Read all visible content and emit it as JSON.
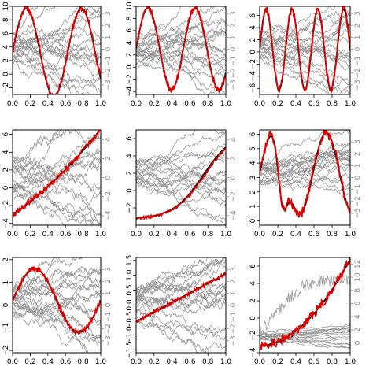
{
  "chart_data": [
    {
      "type": "line",
      "panel": "1",
      "xlim": [
        0,
        1
      ],
      "left_ticks": [
        -2,
        0,
        2,
        4,
        6,
        8,
        10
      ],
      "left_labels": [
        "−2",
        "0",
        "2",
        "4",
        "6",
        "8",
        "10"
      ],
      "ylim": [
        -3,
        10
      ],
      "right_ticks": [
        -3,
        -2,
        -1,
        0,
        1,
        2,
        3
      ],
      "right_labels": [
        "−3",
        "−2",
        "−1",
        "0",
        "1",
        "2",
        "3"
      ],
      "rlim": [
        -3.8,
        3.6
      ],
      "x_ticks": [
        0,
        0.2,
        0.4,
        0.6,
        0.8,
        1
      ],
      "x_labels": [
        "0.0",
        "0.2",
        "0.4",
        "0.6",
        "0.8",
        "1.0"
      ],
      "truth": {
        "fn": "sin",
        "a": 6.5,
        "f": 1.6,
        "c": 3.2
      },
      "red": {
        "noise": 0.45
      },
      "gray": {
        "n": 20,
        "center": 0.0,
        "spread": 1.6
      }
    },
    {
      "type": "line",
      "panel": "2",
      "xlim": [
        0,
        1
      ],
      "left_ticks": [
        -4,
        -2,
        0,
        2,
        4,
        6,
        8,
        10
      ],
      "left_labels": [
        "−4",
        "−2",
        "0",
        "2",
        "4",
        "6",
        "8",
        "10"
      ],
      "ylim": [
        -4.5,
        10
      ],
      "right_ticks": [
        -3,
        -2,
        -1,
        0,
        1,
        2,
        3
      ],
      "right_labels": [
        "−3",
        "−2",
        "−1",
        "0",
        "1",
        "2",
        "3"
      ],
      "rlim": [
        -3.8,
        3.6
      ],
      "x_ticks": [
        0,
        0.2,
        0.4,
        0.6,
        0.8,
        1
      ],
      "x_labels": [
        "0.0",
        "0.2",
        "0.4",
        "0.6",
        "0.8",
        "1.0"
      ],
      "truth": {
        "fn": "sin",
        "a": 6.7,
        "f": 1.9,
        "c": 3.0
      },
      "red": {
        "noise": 0.45
      },
      "gray": {
        "n": 20,
        "center": 0.0,
        "spread": 1.5
      }
    },
    {
      "type": "line",
      "panel": "3",
      "xlim": [
        0,
        1
      ],
      "left_ticks": [
        -6,
        -4,
        -2,
        0,
        2,
        4,
        6
      ],
      "left_labels": [
        "−6",
        "−4",
        "−2",
        "0",
        "2",
        "4",
        "6"
      ],
      "ylim": [
        -7,
        7.5
      ],
      "right_ticks": [
        -3,
        -2,
        -1,
        0,
        1,
        2,
        3
      ],
      "right_labels": [
        "−3",
        "−2",
        "−1",
        "0",
        "1",
        "2",
        "3"
      ],
      "rlim": [
        -3.8,
        3.6
      ],
      "x_ticks": [
        0,
        0.2,
        0.4,
        0.6,
        0.8,
        1
      ],
      "x_labels": [
        "0.0",
        "0.2",
        "0.4",
        "0.6",
        "0.8",
        "1.0"
      ],
      "truth": {
        "fn": "sin",
        "a": 6.6,
        "f": 3.5,
        "c": 0.4
      },
      "red": {
        "noise": 0.6
      },
      "gray": {
        "n": 20,
        "center": 0.3,
        "spread": 1.4
      }
    },
    {
      "type": "line",
      "panel": "4",
      "xlim": [
        0,
        1
      ],
      "left_ticks": [
        -4,
        -2,
        0,
        2,
        4,
        6
      ],
      "left_labels": [
        "−4",
        "−2",
        "0",
        "2",
        "4",
        "6"
      ],
      "ylim": [
        -4.2,
        6.5
      ],
      "right_ticks": [
        -4,
        -2,
        0,
        2,
        4
      ],
      "right_labels": [
        "−4",
        "−2",
        "0",
        "2",
        "4"
      ],
      "rlim": [
        -5,
        5
      ],
      "x_ticks": [
        0,
        0.2,
        0.4,
        0.6,
        0.8,
        1
      ],
      "x_labels": [
        "0.0",
        "0.2",
        "0.4",
        "0.6",
        "0.8",
        "1.0"
      ],
      "truth": {
        "fn": "quad",
        "a": 3.0,
        "b": 6.6,
        "c": -3.0
      },
      "red": {
        "noise": 0.3
      },
      "gray": {
        "n": 18,
        "center": 0.0,
        "spread": 2.4
      }
    },
    {
      "type": "line",
      "panel": "5",
      "xlim": [
        0,
        1
      ],
      "left_ticks": [
        -2,
        0,
        2,
        4,
        6
      ],
      "left_labels": [
        "−2",
        "0",
        "2",
        "4",
        "6"
      ],
      "ylim": [
        -4,
        7
      ],
      "right_ticks": [
        -4,
        -2,
        0,
        2,
        4
      ],
      "right_labels": [
        "−4",
        "−2",
        "0",
        "2",
        "4"
      ],
      "rlim": [
        -5,
        5
      ],
      "x_ticks": [
        0,
        0.2,
        0.4,
        0.6,
        0.8,
        1
      ],
      "x_labels": [
        "0.0",
        "0.2",
        "0.4",
        "0.6",
        "0.8",
        "1.0"
      ],
      "truth": {
        "fn": "logistic",
        "lo": -3.3,
        "hi": 6.9,
        "m": 0.75,
        "s": 0.17
      },
      "red": {
        "noise": 0.15,
        "shift": -0.3
      },
      "gray": {
        "n": 18,
        "center": 0.6,
        "spread": 1.6
      }
    },
    {
      "type": "line",
      "panel": "6",
      "xlim": [
        0,
        1
      ],
      "left_ticks": [
        0,
        1,
        2,
        3,
        4,
        5,
        6
      ],
      "left_labels": [
        "0",
        "1",
        "2",
        "3",
        "4",
        "5",
        "6"
      ],
      "ylim": [
        -0.3,
        6.3
      ],
      "right_ticks": [
        -3,
        -2,
        -1,
        0,
        1,
        2,
        3
      ],
      "right_labels": [
        "−3",
        "−2",
        "−1",
        "0",
        "1",
        "2",
        "3"
      ],
      "rlim": [
        -4,
        4
      ],
      "x_ticks": [
        0,
        0.2,
        0.4,
        0.6,
        0.8,
        1
      ],
      "x_labels": [
        "0.0",
        "0.2",
        "0.4",
        "0.6",
        "0.8",
        "1.0"
      ],
      "truth": {
        "fn": "cusp",
        "c": 3.3
      },
      "red": {
        "noise": 0.35
      },
      "gray": {
        "n": 20,
        "center": 0.3,
        "spread": 1.2
      }
    },
    {
      "type": "line",
      "panel": "7",
      "xlim": [
        0,
        1
      ],
      "left_ticks": [
        -2,
        -1,
        0,
        1,
        2
      ],
      "left_labels": [
        "−2",
        "−1",
        "0",
        "1",
        "2"
      ],
      "ylim": [
        -2.1,
        2.1
      ],
      "right_ticks": [
        -3,
        -2,
        -1,
        0,
        1,
        2,
        3
      ],
      "right_labels": [
        "−3",
        "−2",
        "−1",
        "0",
        "1",
        "2",
        "3"
      ],
      "rlim": [
        -4,
        4
      ],
      "x_ticks": [
        0,
        0.2,
        0.4,
        0.6,
        0.8,
        1
      ],
      "x_labels": [
        "0.0",
        "0.2",
        "0.4",
        "0.6",
        "0.8",
        "1.0"
      ],
      "truth": {
        "fn": "sin",
        "a": 1.4,
        "f": 1.0,
        "c": 0.2
      },
      "red": {
        "noise": 0.1
      },
      "gray": {
        "n": 20,
        "center": 0.2,
        "spread": 1.7
      }
    },
    {
      "type": "line",
      "panel": "8",
      "xlim": [
        0,
        1
      ],
      "left_ticks": [
        -1.5,
        -1,
        -0.5,
        0,
        0.5,
        1,
        1.5
      ],
      "left_labels": [
        "−1.5",
        "−1.0",
        "−0.5",
        "0.0",
        "0.5",
        "1.0",
        "1.5"
      ],
      "ylim": [
        -1.6,
        1.6
      ],
      "right_ticks": [
        -3,
        -2,
        -1,
        0,
        1,
        2,
        3
      ],
      "right_labels": [
        "−3",
        "−2",
        "−1",
        "0",
        "1",
        "2",
        "3"
      ],
      "rlim": [
        -4,
        4
      ],
      "x_ticks": [
        0,
        0.2,
        0.4,
        0.6,
        0.8,
        1
      ],
      "x_labels": [
        "0.0",
        "0.2",
        "0.4",
        "0.6",
        "0.8",
        "1.0"
      ],
      "truth": {
        "fn": "line",
        "lo": -0.55,
        "hi": 1.05
      },
      "red": {
        "noise": 0.06
      },
      "gray": {
        "n": 20,
        "center": 0.2,
        "spread": 1.7
      }
    },
    {
      "type": "line",
      "panel": "9",
      "xlim": [
        0,
        1
      ],
      "left_ticks": [
        -4,
        -2,
        0,
        2,
        4,
        6
      ],
      "left_labels": [
        "−4",
        "−2",
        "0",
        "2",
        "4",
        "6"
      ],
      "ylim": [
        -4,
        7
      ],
      "right_ticks": [
        0,
        2,
        4,
        6,
        8,
        10,
        12
      ],
      "right_labels": [
        "0",
        "2",
        "4",
        "6",
        "8",
        "10",
        "12"
      ],
      "rlim": [
        -1.5,
        13
      ],
      "x_ticks": [
        0,
        0.2,
        0.4,
        0.6,
        0.8,
        1
      ],
      "x_labels": [
        "0.0",
        "0.2",
        "0.4",
        "0.6",
        "0.8",
        "1.0"
      ],
      "truth": {
        "fn": "quad",
        "a": 9.5,
        "b": 0.5,
        "c": -3.2
      },
      "red": {
        "noise": 0.5
      },
      "gray": {
        "n": 18,
        "center": 0.9,
        "spread": 0.6
      }
    }
  ],
  "colors": {
    "truth": "#000000",
    "estimate": "#e00000",
    "samples": "#9a9a9a"
  }
}
